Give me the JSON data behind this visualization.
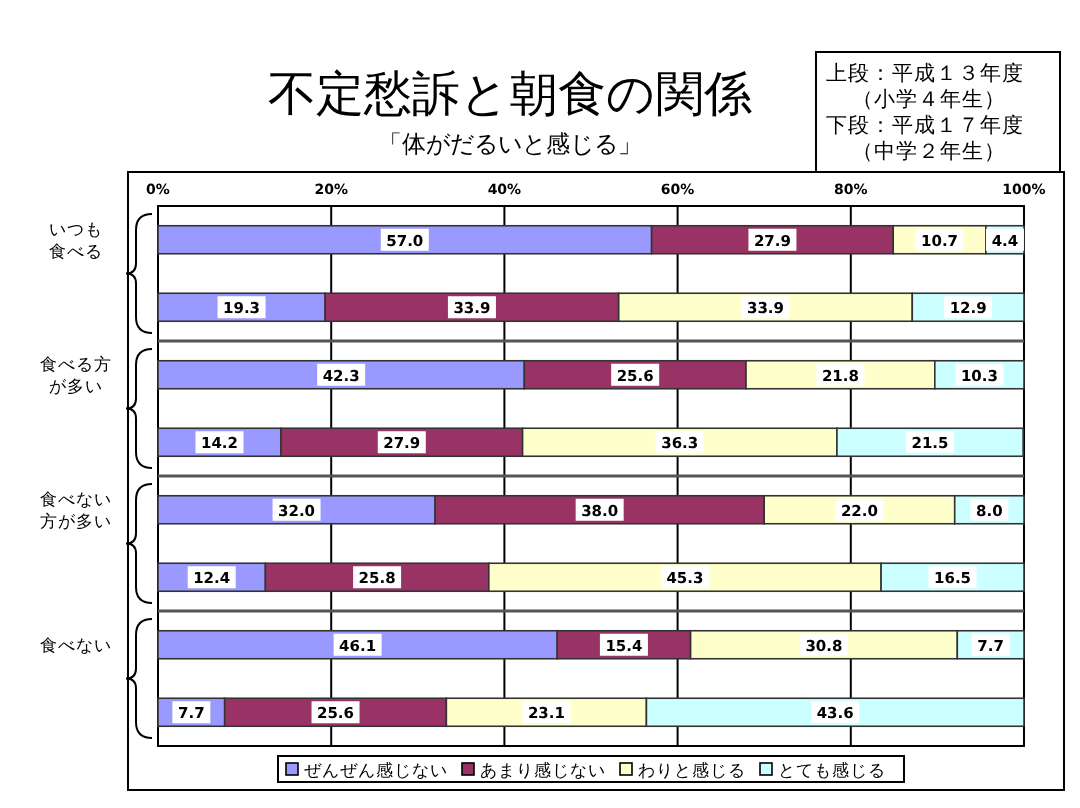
{
  "chart_data": {
    "type": "bar",
    "orientation": "horizontal",
    "stacked": true,
    "title": "不定愁訴と朝食の関係",
    "subtitle": "「体がだるいと感じる」",
    "annotations": [
      "上段：平成１３年度",
      "（小学４年生）",
      "下段：平成１７年度",
      "（中学２年生）"
    ],
    "categories": [
      "いつも食べる",
      null,
      "食べる方が多い",
      null,
      "食べない方が多い",
      null,
      "食べない",
      null
    ],
    "series": [
      {
        "name": "ぜんぜん感じない",
        "color": "#9999ff",
        "values": [
          57.0,
          19.3,
          42.3,
          14.2,
          32.0,
          12.4,
          46.1,
          7.7
        ],
        "value_labels": [
          "57.0",
          "19.3",
          "42.3",
          "14.2",
          "32.0",
          "12.4",
          "46.1",
          "7.7"
        ]
      },
      {
        "name": "あまり感じない",
        "color": "#993366",
        "values": [
          27.9,
          33.9,
          25.6,
          27.9,
          38.0,
          25.8,
          15.4,
          25.6
        ],
        "value_labels": [
          "27.9",
          "33.9",
          "25.6",
          "27.9",
          "38.0",
          "25.8",
          "15.4",
          "25.6"
        ]
      },
      {
        "name": "わりと感じる",
        "color": "#ffffcc",
        "values": [
          10.7,
          33.9,
          21.8,
          36.3,
          22.0,
          45.3,
          30.8,
          23.1
        ],
        "value_labels": [
          "10.7",
          "33.9",
          "21.8",
          "36.3",
          "22.0",
          "45.3",
          "30.8",
          "23.1"
        ]
      },
      {
        "name": "とても感じる",
        "color": "#ccffff",
        "values": [
          4.4,
          12.9,
          10.3,
          21.5,
          8.0,
          16.5,
          7.7,
          43.6
        ],
        "value_labels": [
          "4.4",
          "12.9",
          "10.3",
          "21.5",
          "8.0",
          "16.5",
          "7.7",
          "43.6"
        ]
      }
    ],
    "xlim": [
      0,
      100
    ],
    "xticks": [
      {
        "value": 0,
        "label": "0%"
      },
      {
        "value": 20,
        "label": "20%"
      },
      {
        "value": 40,
        "label": "40%"
      },
      {
        "value": 60,
        "label": "60%"
      },
      {
        "value": 80,
        "label": "80%"
      },
      {
        "value": 100,
        "label": "100%"
      }
    ],
    "grid": "x",
    "legend": "bottom"
  }
}
